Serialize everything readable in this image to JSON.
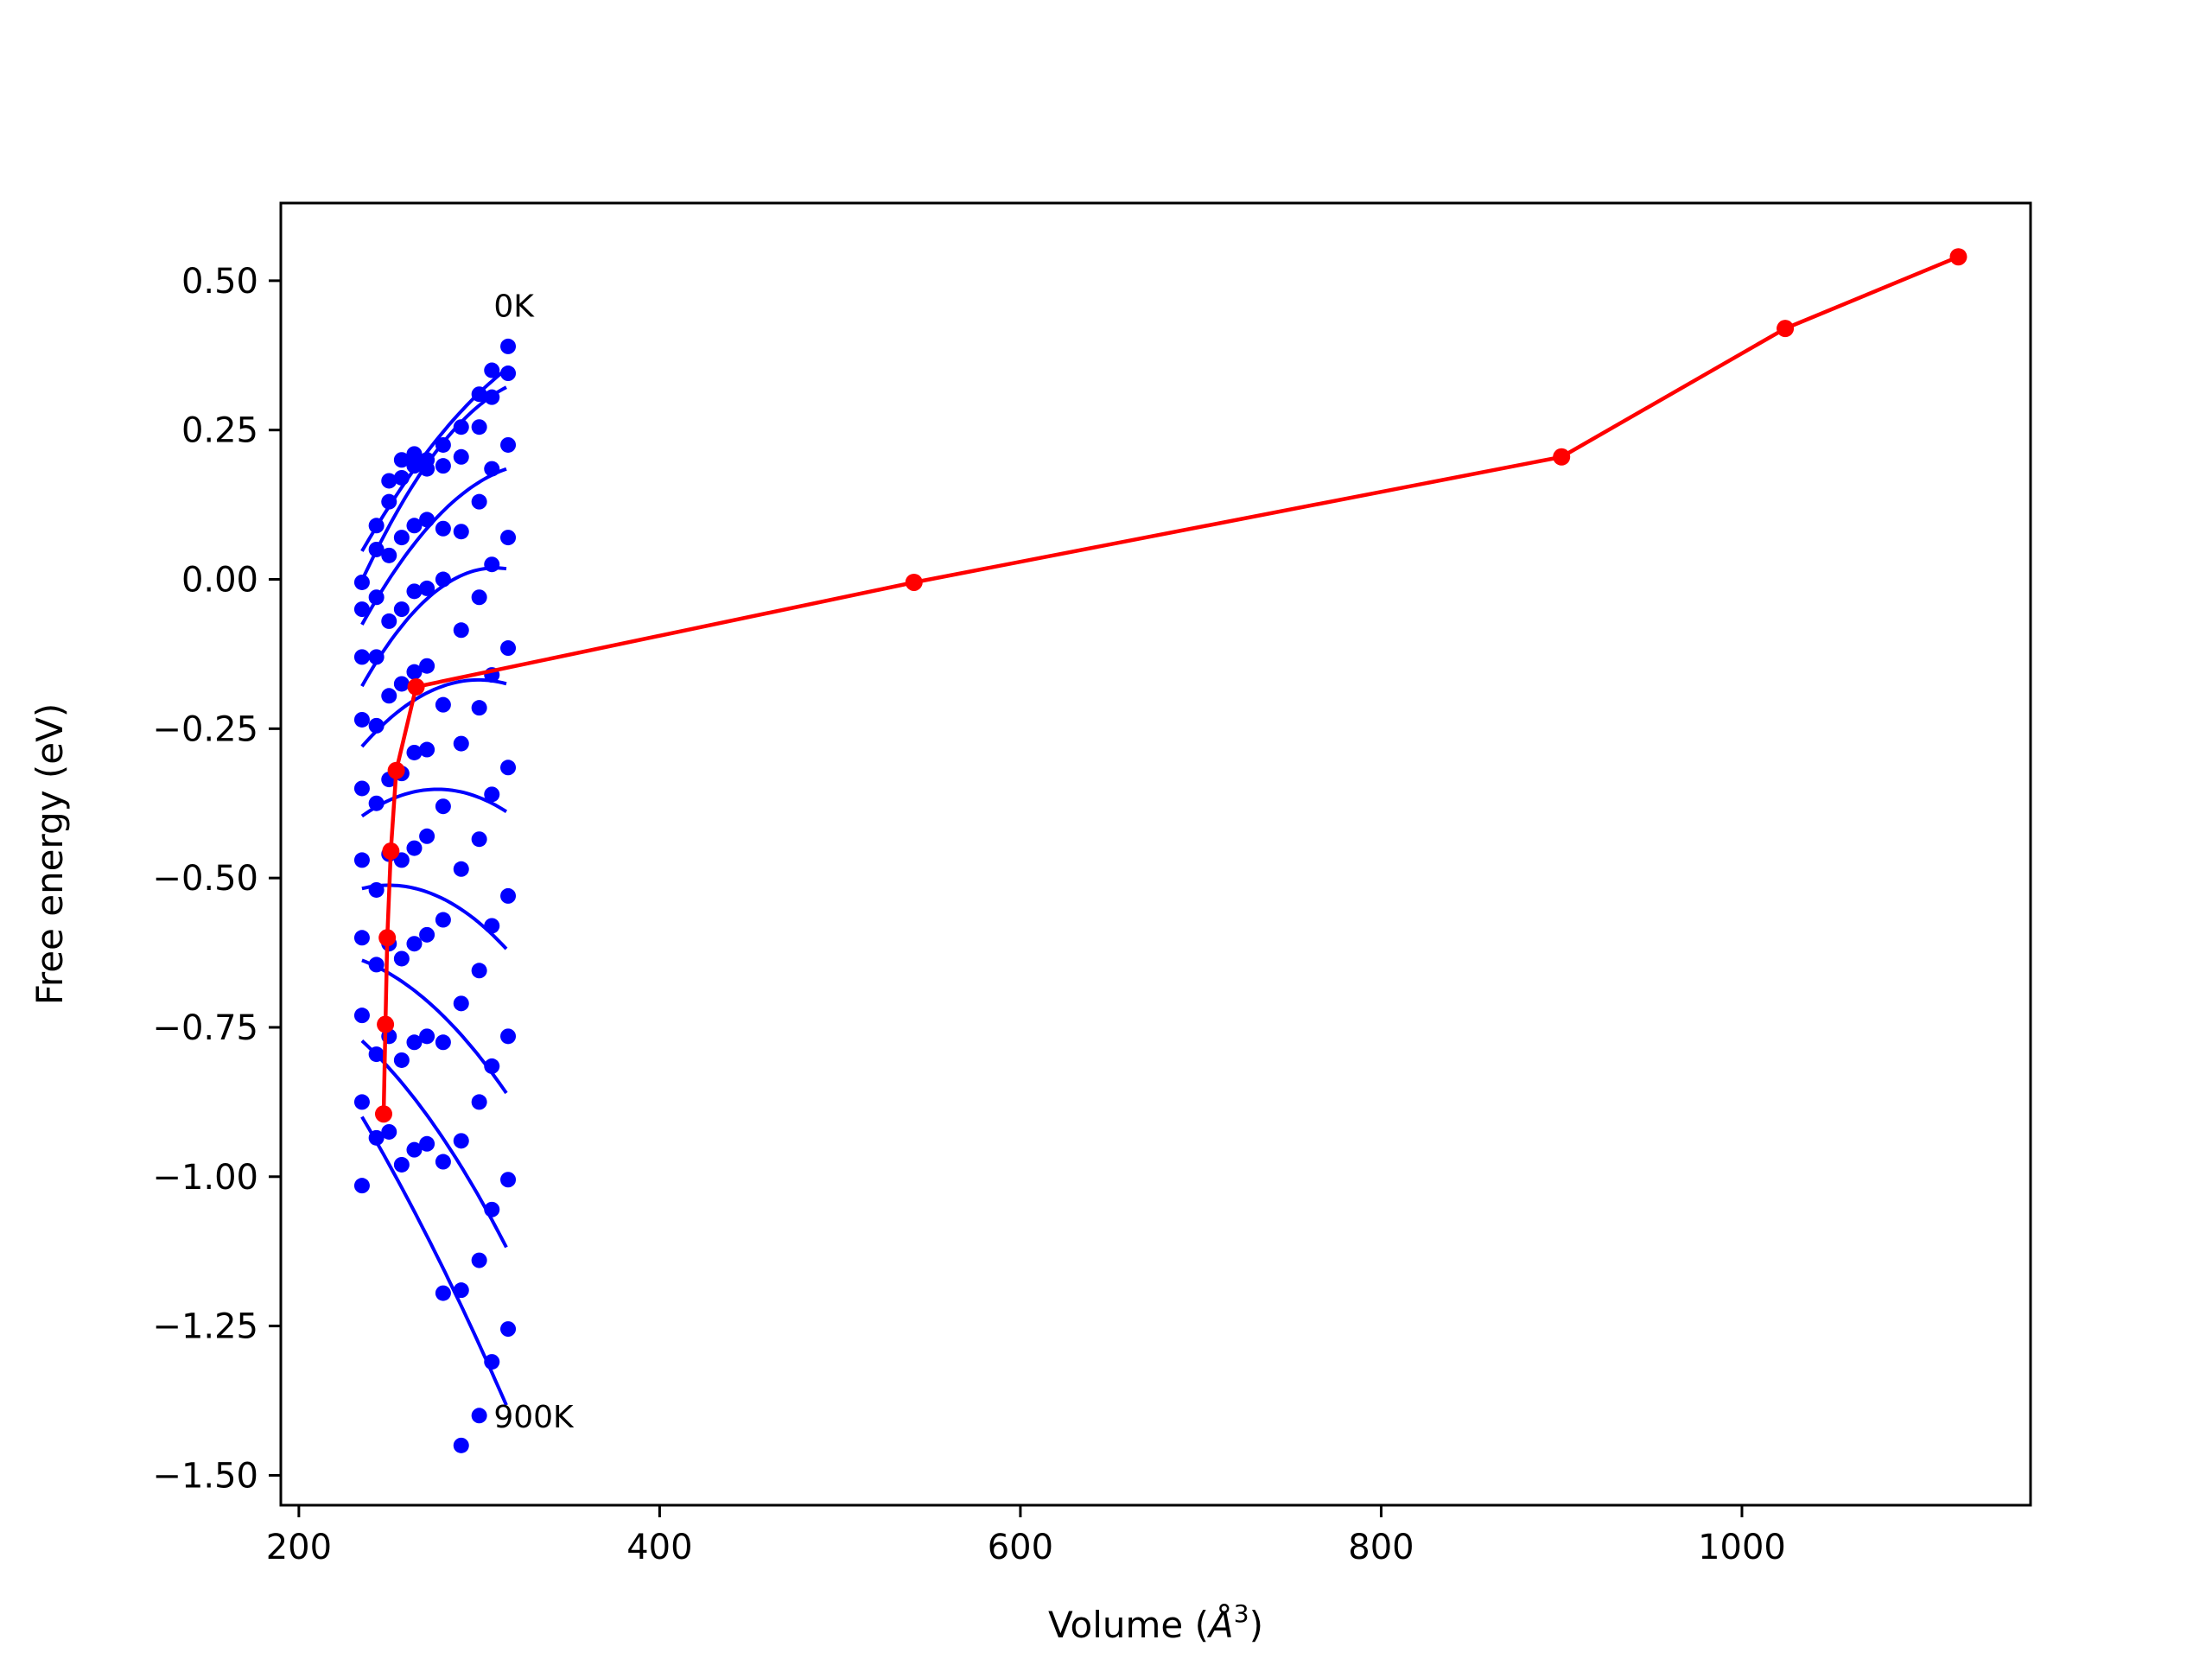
{
  "chart_data": {
    "type": "line",
    "title": "",
    "xlabel": "Volume (",
    "xlabel_symbol": "Å",
    "xlabel_power": "3",
    "xlabel_close": ")",
    "ylabel": "Free energy (eV)",
    "xlim": [
      190,
      1160
    ],
    "ylim": [
      -1.55,
      0.63
    ],
    "grid": false,
    "legend": "none",
    "x_ticks": [
      200,
      400,
      600,
      800,
      1000
    ],
    "y_ticks": [
      0.5,
      0.25,
      0.0,
      -0.25,
      -0.5,
      -0.75,
      -1.0,
      -1.25,
      -1.5
    ],
    "x_tick_labels": [
      "200",
      "400",
      "600",
      "800",
      "1000"
    ],
    "y_tick_labels": [
      "0.50",
      "0.25",
      "0.00",
      "−0.25",
      "−0.50",
      "−0.75",
      "−1.00",
      "−1.25",
      "−1.50"
    ],
    "annotations": [
      {
        "text": "0K",
        "x": 308,
        "y": 0.44
      },
      {
        "text": "900K",
        "x": 308,
        "y": -1.42
      }
    ],
    "colors": {
      "isotherm": "#0000ff",
      "equilibrium": "#ff0000"
    },
    "volumes": [
      235,
      243,
      250,
      257,
      264,
      271,
      280,
      290,
      300,
      307,
      316
    ],
    "isotherm_points": [
      [
        -0.005,
        0.09,
        0.165,
        0.2,
        0.21,
        0.2,
        0.225,
        0.255,
        0.255,
        0.35,
        0.39
      ],
      [
        -0.05,
        0.05,
        0.13,
        0.17,
        0.19,
        0.185,
        0.19,
        0.205,
        0.31,
        0.305,
        0.345
      ],
      [
        -0.13,
        -0.03,
        0.04,
        0.07,
        0.09,
        0.1,
        0.085,
        0.08,
        0.13,
        0.185,
        0.225
      ],
      [
        -0.235,
        -0.13,
        -0.07,
        -0.05,
        -0.02,
        -0.015,
        0.0,
        -0.085,
        -0.03,
        0.025,
        0.07
      ],
      [
        -0.35,
        -0.245,
        -0.195,
        -0.175,
        -0.155,
        -0.145,
        -0.21,
        -0.275,
        -0.215,
        -0.16,
        -0.115
      ],
      [
        -0.47,
        -0.375,
        -0.335,
        -0.325,
        -0.29,
        -0.285,
        -0.38,
        -0.485,
        -0.435,
        -0.36,
        -0.315
      ],
      [
        -0.6,
        -0.52,
        -0.46,
        -0.47,
        -0.45,
        -0.43,
        -0.57,
        -0.71,
        -0.655,
        -0.58,
        -0.53
      ],
      [
        -0.73,
        -0.645,
        -0.61,
        -0.635,
        -0.61,
        -0.595,
        -0.775,
        -0.94,
        -0.875,
        -0.815,
        -0.765
      ],
      [
        -0.875,
        -0.795,
        -0.765,
        -0.805,
        -0.775,
        -0.765,
        -0.975,
        -1.19,
        -1.14,
        -1.055,
        -1.005
      ],
      [
        -1.015,
        -0.935,
        -0.925,
        -0.98,
        -0.955,
        -0.945,
        -1.195,
        -1.45,
        -1.4,
        -1.31,
        -1.255
      ]
    ],
    "equilibrium_line": {
      "x": [
        247,
        248,
        249,
        251,
        254,
        265,
        541,
        900,
        1024,
        1120
      ],
      "y": [
        -0.895,
        -0.745,
        -0.6,
        -0.455,
        -0.32,
        -0.18,
        -0.005,
        0.205,
        0.42,
        0.54
      ]
    }
  }
}
